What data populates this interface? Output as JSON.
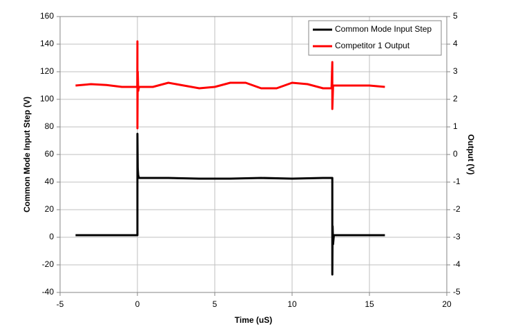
{
  "chart_data": {
    "type": "line",
    "x_label": "Time (uS)",
    "y_label": "Common Mode Input Step (V)",
    "y2_label": "Output (V)",
    "xlim": [
      -5,
      20
    ],
    "xticks": [
      -5,
      0,
      5,
      10,
      15,
      20
    ],
    "ylim": [
      -40,
      160
    ],
    "yticks": [
      -40,
      -20,
      0,
      20,
      40,
      60,
      80,
      100,
      120,
      140,
      160
    ],
    "y2lim": [
      -5,
      5
    ],
    "y2ticks": [
      -5,
      -4,
      -3,
      -2,
      -1,
      0,
      1,
      2,
      3,
      4,
      5
    ],
    "grid": true,
    "legend": "top-right",
    "series": [
      {
        "name": "Common Mode Input Step",
        "color": "#000000",
        "x": [
          -4,
          -0.01,
          0,
          0,
          0.02,
          0.05,
          0.1,
          0.3,
          2,
          4,
          6,
          8,
          10,
          12,
          12.55,
          12.6,
          12.6,
          12.62,
          12.65,
          12.7,
          13,
          14,
          16
        ],
        "values": [
          1.5,
          1.5,
          1.5,
          75,
          50,
          45,
          43,
          43,
          43,
          42.5,
          42.5,
          43,
          42.5,
          43,
          43,
          43,
          -27,
          8,
          -5,
          1.5,
          1.5,
          1.5,
          1.5
        ]
      },
      {
        "name": "Competitor 1 Output",
        "color": "#ff0000",
        "axis": "y2",
        "x": [
          -4,
          -3,
          -2,
          -1,
          -0.01,
          0,
          0,
          0.02,
          0.05,
          0.1,
          1,
          2,
          3,
          4,
          5,
          6,
          7,
          8,
          9,
          10,
          11,
          12,
          12.55,
          12.6,
          12.6,
          12.65,
          12.7,
          13,
          14,
          15,
          16
        ],
        "values": [
          2.5,
          2.55,
          2.52,
          2.45,
          2.45,
          4.1,
          0.95,
          3.0,
          2.3,
          2.45,
          2.45,
          2.6,
          2.5,
          2.4,
          2.45,
          2.6,
          2.6,
          2.4,
          2.4,
          2.6,
          2.55,
          2.4,
          2.4,
          3.35,
          1.65,
          2.5,
          2.5,
          2.5,
          2.5,
          2.5,
          2.45
        ]
      }
    ]
  }
}
